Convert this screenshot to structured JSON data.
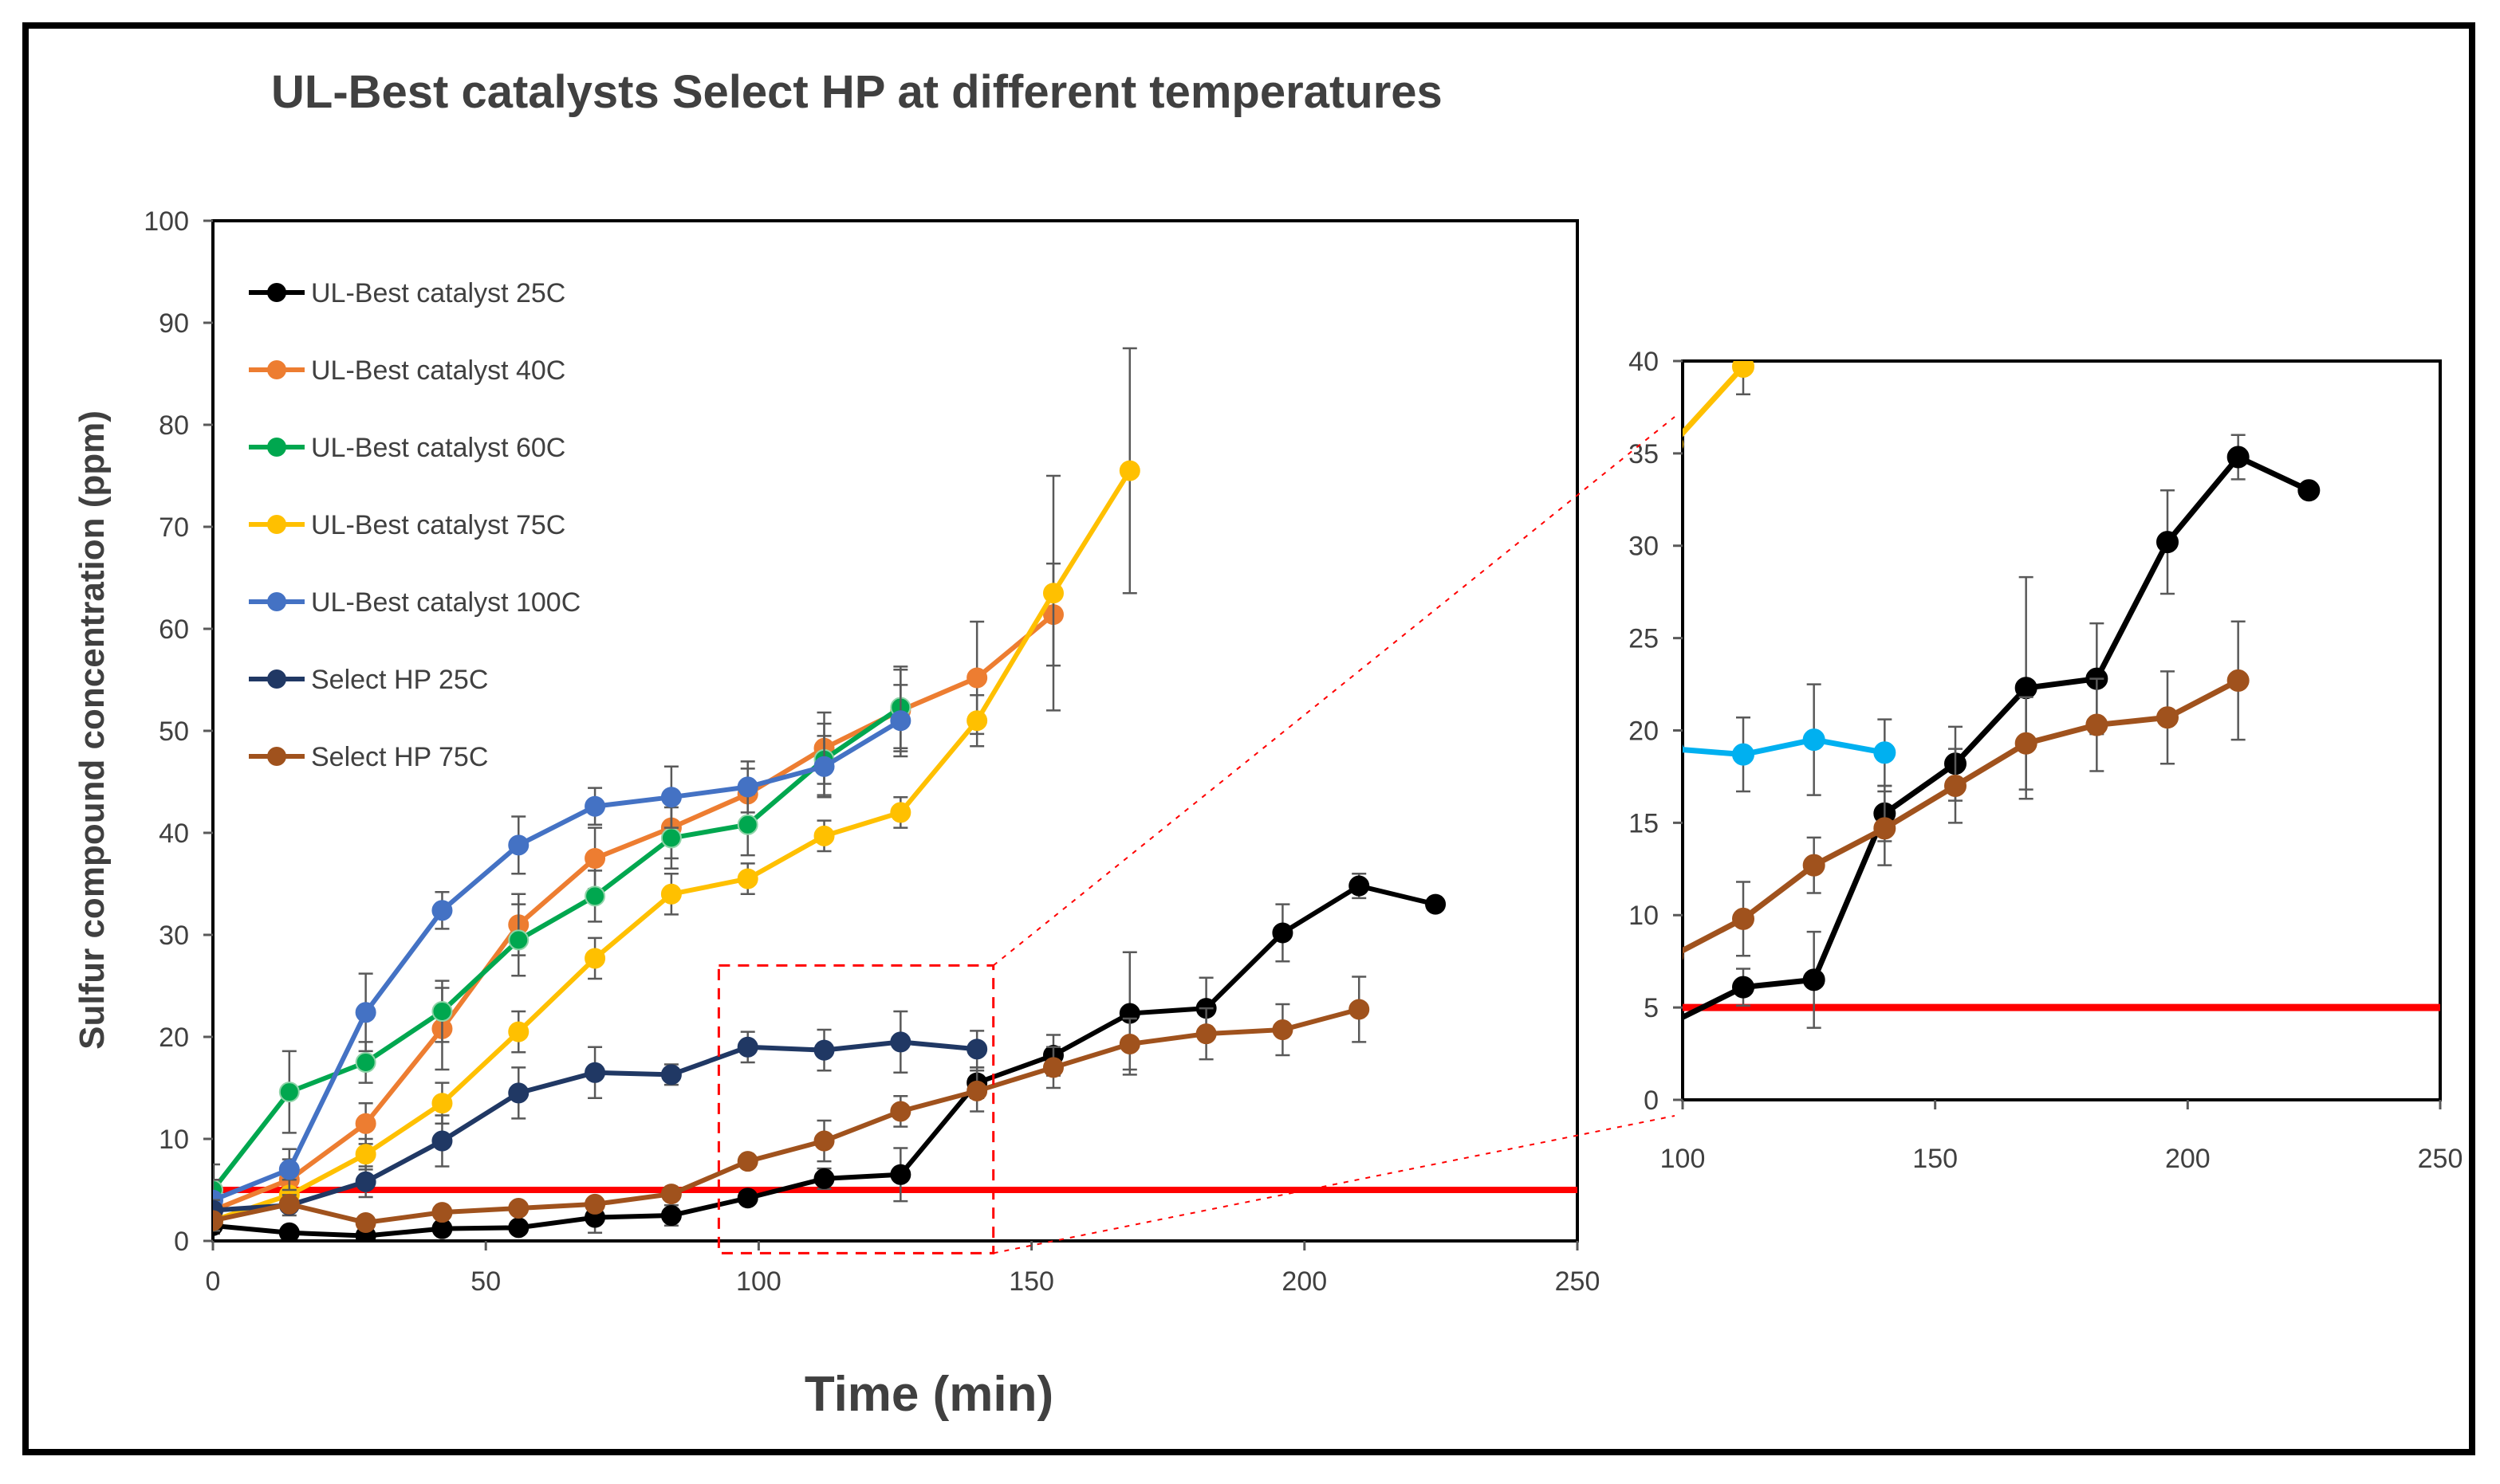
{
  "chart_data": [
    {
      "type": "line",
      "title": "UL-Best catalysts Select HP at different temperatures",
      "xlabel": "Time (min)",
      "ylabel": "Sulfur compound concentration (ppm)",
      "xlim": [
        0,
        250
      ],
      "ylim": [
        0,
        100
      ],
      "xticks": [
        0,
        50,
        100,
        150,
        200,
        250
      ],
      "yticks": [
        0,
        10,
        20,
        30,
        40,
        50,
        60,
        70,
        80,
        90,
        100
      ],
      "grid": false,
      "legend": "top-left",
      "reference_line": {
        "y": 5,
        "color": "#ff0000"
      },
      "series": [
        {
          "name": "UL-Best catalyst 25C",
          "color": "#000000",
          "x": [
            0,
            14,
            28,
            42,
            56,
            70,
            84,
            98,
            112,
            126,
            140,
            154,
            168,
            182,
            196,
            210,
            224
          ],
          "y": [
            1.5,
            0.8,
            0.5,
            1.2,
            1.3,
            2.3,
            2.5,
            4.2,
            6.1,
            6.5,
            15.5,
            18.2,
            22.3,
            22.8,
            30.2,
            34.8,
            33.0
          ],
          "err": [
            0.8,
            0.6,
            0.5,
            0.5,
            0.6,
            1.5,
            1.0,
            0.5,
            1.0,
            2.6,
            1.5,
            2.0,
            6.0,
            3.0,
            2.8,
            1.2,
            0
          ]
        },
        {
          "name": "UL-Best catalyst 40C",
          "color": "#ed7d31",
          "x": [
            0,
            14,
            28,
            42,
            56,
            70,
            84,
            98,
            112,
            126,
            140,
            154
          ],
          "y": [
            3.0,
            6.0,
            11.5,
            20.8,
            31.0,
            37.5,
            40.5,
            43.8,
            48.3,
            52.0,
            55.2,
            61.4
          ],
          "err": [
            1.5,
            2.0,
            2.0,
            4.0,
            3.0,
            3.0,
            3.0,
            2.5,
            3.5,
            4.0,
            5.5,
            5.0
          ]
        },
        {
          "name": "UL-Best catalyst 60C",
          "color": "#00a74f",
          "x": [
            0,
            14,
            28,
            42,
            56,
            70,
            84,
            98,
            112,
            126
          ],
          "y": [
            5.0,
            14.6,
            17.5,
            22.5,
            29.5,
            33.8,
            39.5,
            40.8,
            47.2,
            52.3
          ],
          "err": [
            2.5,
            4.0,
            2.0,
            3.0,
            3.5,
            2.5,
            3.0,
            3.0,
            3.5,
            4.0
          ]
        },
        {
          "name": "UL-Best catalyst 75C",
          "color": "#ffc000",
          "x": [
            0,
            14,
            28,
            42,
            56,
            70,
            84,
            98,
            112,
            126,
            140,
            154,
            168
          ],
          "y": [
            2.0,
            4.5,
            8.5,
            13.5,
            20.5,
            27.7,
            34.0,
            35.5,
            39.7,
            42.0,
            51.0,
            63.5,
            75.5
          ],
          "err": [
            1.0,
            1.5,
            1.5,
            2.0,
            2.0,
            2.0,
            2.0,
            1.5,
            1.5,
            1.5,
            2.5,
            11.5,
            12.0
          ]
        },
        {
          "name": "UL-Best catalyst 100C",
          "color": "#4472c4",
          "x": [
            0,
            14,
            28,
            42,
            56,
            70,
            84,
            98,
            112,
            126
          ],
          "y": [
            4.0,
            7.0,
            22.4,
            32.4,
            38.8,
            42.6,
            43.5,
            44.5,
            46.5,
            51.0
          ],
          "err": [
            2.0,
            2.0,
            3.8,
            1.8,
            2.8,
            1.8,
            3.0,
            2.5,
            3.0,
            3.5
          ]
        },
        {
          "name": "Select HP 25C",
          "color": "#203864",
          "x": [
            0,
            14,
            28,
            42,
            56,
            70,
            84,
            98,
            112,
            126,
            140
          ],
          "y": [
            3.0,
            3.5,
            5.8,
            9.8,
            14.5,
            16.5,
            16.3,
            19.0,
            18.7,
            19.5,
            18.8
          ],
          "err": [
            1.0,
            1.0,
            1.5,
            2.5,
            2.5,
            2.5,
            1.0,
            1.5,
            2.0,
            3.0,
            1.8
          ]
        },
        {
          "name": "Select HP 75C",
          "color": "#a0521d",
          "x": [
            0,
            14,
            28,
            42,
            56,
            70,
            84,
            98,
            112,
            126,
            140,
            154,
            168,
            182,
            196,
            210
          ],
          "y": [
            2.0,
            3.6,
            1.8,
            2.8,
            3.2,
            3.6,
            4.6,
            7.8,
            9.8,
            12.7,
            14.7,
            17.0,
            19.3,
            20.3,
            20.7,
            22.7
          ],
          "err": [
            0.5,
            0.5,
            0.5,
            0.5,
            0.5,
            0.5,
            0.5,
            0.5,
            2.0,
            1.5,
            2.0,
            2.0,
            2.5,
            2.5,
            2.5,
            3.2
          ]
        }
      ]
    },
    {
      "type": "line",
      "title": "",
      "xlabel": "",
      "ylabel": "",
      "xlim": [
        100,
        250
      ],
      "ylim": [
        0,
        40
      ],
      "xticks": [
        100,
        150,
        200,
        250
      ],
      "yticks": [
        0,
        5,
        10,
        15,
        20,
        25,
        30,
        35,
        40
      ],
      "grid": false,
      "reference_line": {
        "y": 5,
        "color": "#ff0000"
      },
      "series": [
        {
          "color": "#000000",
          "x": [
            98,
            112,
            126,
            140,
            154,
            168,
            182,
            196,
            210,
            224
          ],
          "y": [
            4.2,
            6.1,
            6.5,
            15.5,
            18.2,
            22.3,
            22.8,
            30.2,
            34.8,
            33.0
          ],
          "err": [
            0.5,
            1.0,
            2.6,
            1.5,
            2.0,
            6.0,
            3.0,
            2.8,
            1.2,
            0
          ]
        },
        {
          "color": "#ffc000",
          "x": [
            98,
            112
          ],
          "y": [
            35.5,
            39.7
          ],
          "err": [
            0,
            1.5
          ]
        },
        {
          "color": "#00b0f0",
          "x": [
            98,
            112,
            126,
            140
          ],
          "y": [
            19.0,
            18.7,
            19.5,
            18.8
          ],
          "err": [
            0,
            2.0,
            3.0,
            1.8
          ]
        },
        {
          "color": "#a0521d",
          "x": [
            98,
            112,
            126,
            140,
            154,
            168,
            182,
            196,
            210
          ],
          "y": [
            7.8,
            9.8,
            12.7,
            14.7,
            17.0,
            19.3,
            20.3,
            20.7,
            22.7
          ],
          "err": [
            0,
            2.0,
            1.5,
            2.0,
            2.0,
            2.5,
            2.5,
            2.5,
            3.2
          ]
        }
      ]
    }
  ]
}
